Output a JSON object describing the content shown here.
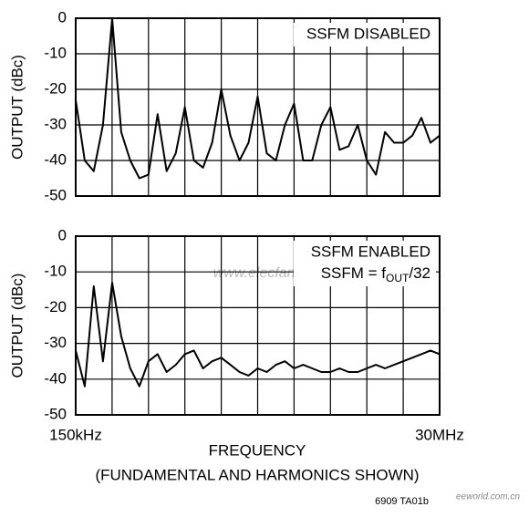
{
  "chart_data": [
    {
      "type": "line",
      "ylabel": "OUTPUT (dBc)",
      "annotation": [
        "SSFM DISABLED"
      ],
      "xlim": [
        150,
        30000
      ],
      "xlog": true,
      "ylim": [
        -50,
        0
      ],
      "yticks": [
        -50,
        -40,
        -30,
        -20,
        -10,
        0
      ],
      "grid": true,
      "x": [
        150,
        171,
        195,
        223,
        255,
        291,
        332,
        379,
        433,
        494,
        564,
        644,
        735,
        839,
        958,
        1094,
        1249,
        1426,
        1628,
        1858,
        2121,
        2422,
        2765,
        3156,
        3603,
        4113,
        4696,
        5361,
        6120,
        6987,
        7976,
        9106,
        10396,
        11868,
        13548,
        15467,
        17658,
        20158,
        23013,
        26272,
        30000
      ],
      "series": [
        {
          "color": "#000000",
          "values": [
            -23,
            -40,
            -43,
            -30,
            0,
            -32,
            -40,
            -45,
            -44,
            -27,
            -43,
            -38,
            -25,
            -40,
            -42,
            -35,
            -20,
            -33,
            -40,
            -35,
            -22,
            -38,
            -40,
            -30,
            -24,
            -40,
            -40,
            -30,
            -25,
            -37,
            -36,
            -30,
            -40,
            -44,
            -32,
            -35,
            -35,
            -33,
            -28,
            -35,
            -33
          ]
        }
      ]
    },
    {
      "type": "line",
      "ylabel": "OUTPUT (dBc)",
      "annotation": [
        "SSFM ENABLED",
        "SSFM = f",
        "OUT",
        "/32"
      ],
      "xlim": [
        150,
        30000
      ],
      "xlog": true,
      "ylim": [
        -50,
        0
      ],
      "yticks": [
        -50,
        -40,
        -30,
        -20,
        -10,
        0
      ],
      "grid": true,
      "xticks": [
        {
          "value": 150,
          "label": "150kHz"
        },
        {
          "value": 30000,
          "label": "30MHz"
        }
      ],
      "x": [
        150,
        171,
        195,
        223,
        255,
        291,
        332,
        379,
        433,
        494,
        564,
        644,
        735,
        839,
        958,
        1094,
        1249,
        1426,
        1628,
        1858,
        2121,
        2422,
        2765,
        3156,
        3603,
        4113,
        4696,
        5361,
        6120,
        6987,
        7976,
        9106,
        10396,
        11868,
        13548,
        15467,
        17658,
        20158,
        23013,
        26272,
        30000
      ],
      "series": [
        {
          "color": "#000000",
          "values": [
            -32,
            -42,
            -14,
            -35,
            -13,
            -28,
            -37,
            -42,
            -35,
            -33,
            -38,
            -36,
            -33,
            -32,
            -37,
            -35,
            -34,
            -36,
            -38,
            -39,
            -37,
            -38,
            -36,
            -35,
            -37,
            -36,
            -37,
            -38,
            -38,
            -37,
            -38,
            -38,
            -37,
            -36,
            -37,
            -36,
            -35,
            -34,
            -33,
            -32,
            -33
          ]
        }
      ]
    }
  ],
  "xlabel": "FREQUENCY",
  "xsublabel": "(FUNDAMENTAL AND HARMONICS SHOWN)",
  "figure_id": "6909 TA01b",
  "watermarks": [
    "www.elecfans.com",
    "eeworld.com.cn"
  ]
}
